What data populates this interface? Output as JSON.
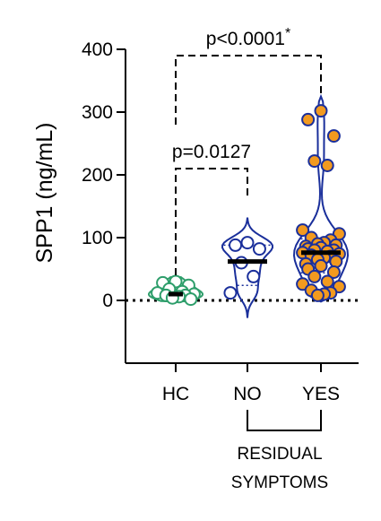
{
  "chart_data": {
    "type": "violin",
    "title": "",
    "xlabel": "",
    "ylabel": "SPP1 (ng/mL)",
    "ylim": [
      -100,
      400
    ],
    "yticks": [
      0,
      100,
      200,
      300,
      400
    ],
    "categories": [
      "HC",
      "NO",
      "YES"
    ],
    "group_bracket": {
      "categories": [
        "NO",
        "YES"
      ],
      "label_lines": [
        "RESIDUAL",
        "SYMPTOMS"
      ]
    },
    "reference_line": {
      "y": 0,
      "style": "dotted"
    },
    "series": [
      {
        "category": "HC",
        "color": "#2e9e6b",
        "marker_fill": "#ffffff",
        "median": 10,
        "quartiles": [
          4,
          22
        ],
        "violin_range": [
          -2,
          38
        ],
        "points": [
          30,
          28,
          24,
          18,
          14,
          12,
          10,
          8,
          8,
          6,
          4,
          2
        ]
      },
      {
        "category": "NO",
        "color": "#1a2f9b",
        "marker_fill": "#ffffff",
        "median": 62,
        "quartiles": [
          24,
          88
        ],
        "violin_range": [
          -28,
          132
        ],
        "points": [
          92,
          88,
          82,
          60,
          38,
          12
        ]
      },
      {
        "category": "YES",
        "color": "#1a2f9b",
        "marker_fill": "#f29a1f",
        "median": 76,
        "quartiles": [
          44,
          98
        ],
        "violin_range": [
          -2,
          325
        ],
        "points": [
          302,
          288,
          262,
          222,
          215,
          112,
          106,
          100,
          96,
          92,
          90,
          88,
          86,
          84,
          82,
          80,
          80,
          78,
          76,
          74,
          72,
          70,
          68,
          65,
          62,
          58,
          55,
          50,
          45,
          38,
          30,
          26,
          22,
          16,
          12,
          10,
          8
        ]
      }
    ],
    "annotations": [
      {
        "label": "p=0.0127",
        "from": "HC",
        "to": "NO",
        "level": 210,
        "from_y": 40,
        "to_y": 165
      },
      {
        "label": "p<0.0001",
        "superscript": "*",
        "from": "HC",
        "to": "YES",
        "level": 390,
        "from_y": 280,
        "to_y": 330
      }
    ]
  }
}
